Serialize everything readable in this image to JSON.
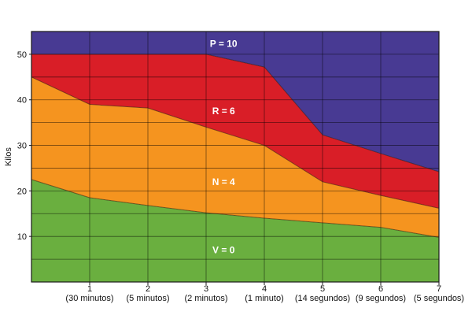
{
  "chart_data": {
    "type": "area",
    "ylabel": "Kilos",
    "xlabel": "",
    "xlim": [
      0,
      7
    ],
    "ylim": [
      0,
      55
    ],
    "y_ticks": [
      10,
      20,
      30,
      40,
      50
    ],
    "grid": true,
    "x": [
      0,
      1,
      2,
      3,
      4,
      5,
      6,
      7
    ],
    "x_tick_labels": [
      {
        "num": "1",
        "sub": "(30 minutos)"
      },
      {
        "num": "2",
        "sub": "(5 minutos)"
      },
      {
        "num": "3",
        "sub": "(2 minutos)"
      },
      {
        "num": "4",
        "sub": "(1 minuto)"
      },
      {
        "num": "5",
        "sub": "(14 segundos)"
      },
      {
        "num": "6",
        "sub": "(9 segundos)"
      },
      {
        "num": "7",
        "sub": "(5 segundos)"
      }
    ],
    "series": [
      {
        "name": "V = 0",
        "color": "#6aaf3f",
        "upper": [
          22.5,
          18.5,
          16.8,
          15.2,
          14.0,
          13.0,
          12.0,
          9.8
        ],
        "label_at": [
          3.3,
          7
        ]
      },
      {
        "name": "N = 4",
        "color": "#f5941f",
        "upper": [
          45,
          39,
          38.2,
          34.0,
          30.0,
          22.0,
          19.0,
          16.2
        ],
        "label_at": [
          3.3,
          22
        ]
      },
      {
        "name": "R = 6",
        "color": "#d91e27",
        "upper": [
          50,
          50,
          50,
          50,
          47.2,
          32.3,
          28.2,
          24.2
        ],
        "label_at": [
          3.3,
          37.5
        ]
      },
      {
        "name": "P = 10",
        "color": "#483a93",
        "upper": [
          55,
          55,
          55,
          55,
          55,
          55,
          55,
          55
        ],
        "label_at": [
          3.3,
          52.3
        ]
      }
    ]
  }
}
